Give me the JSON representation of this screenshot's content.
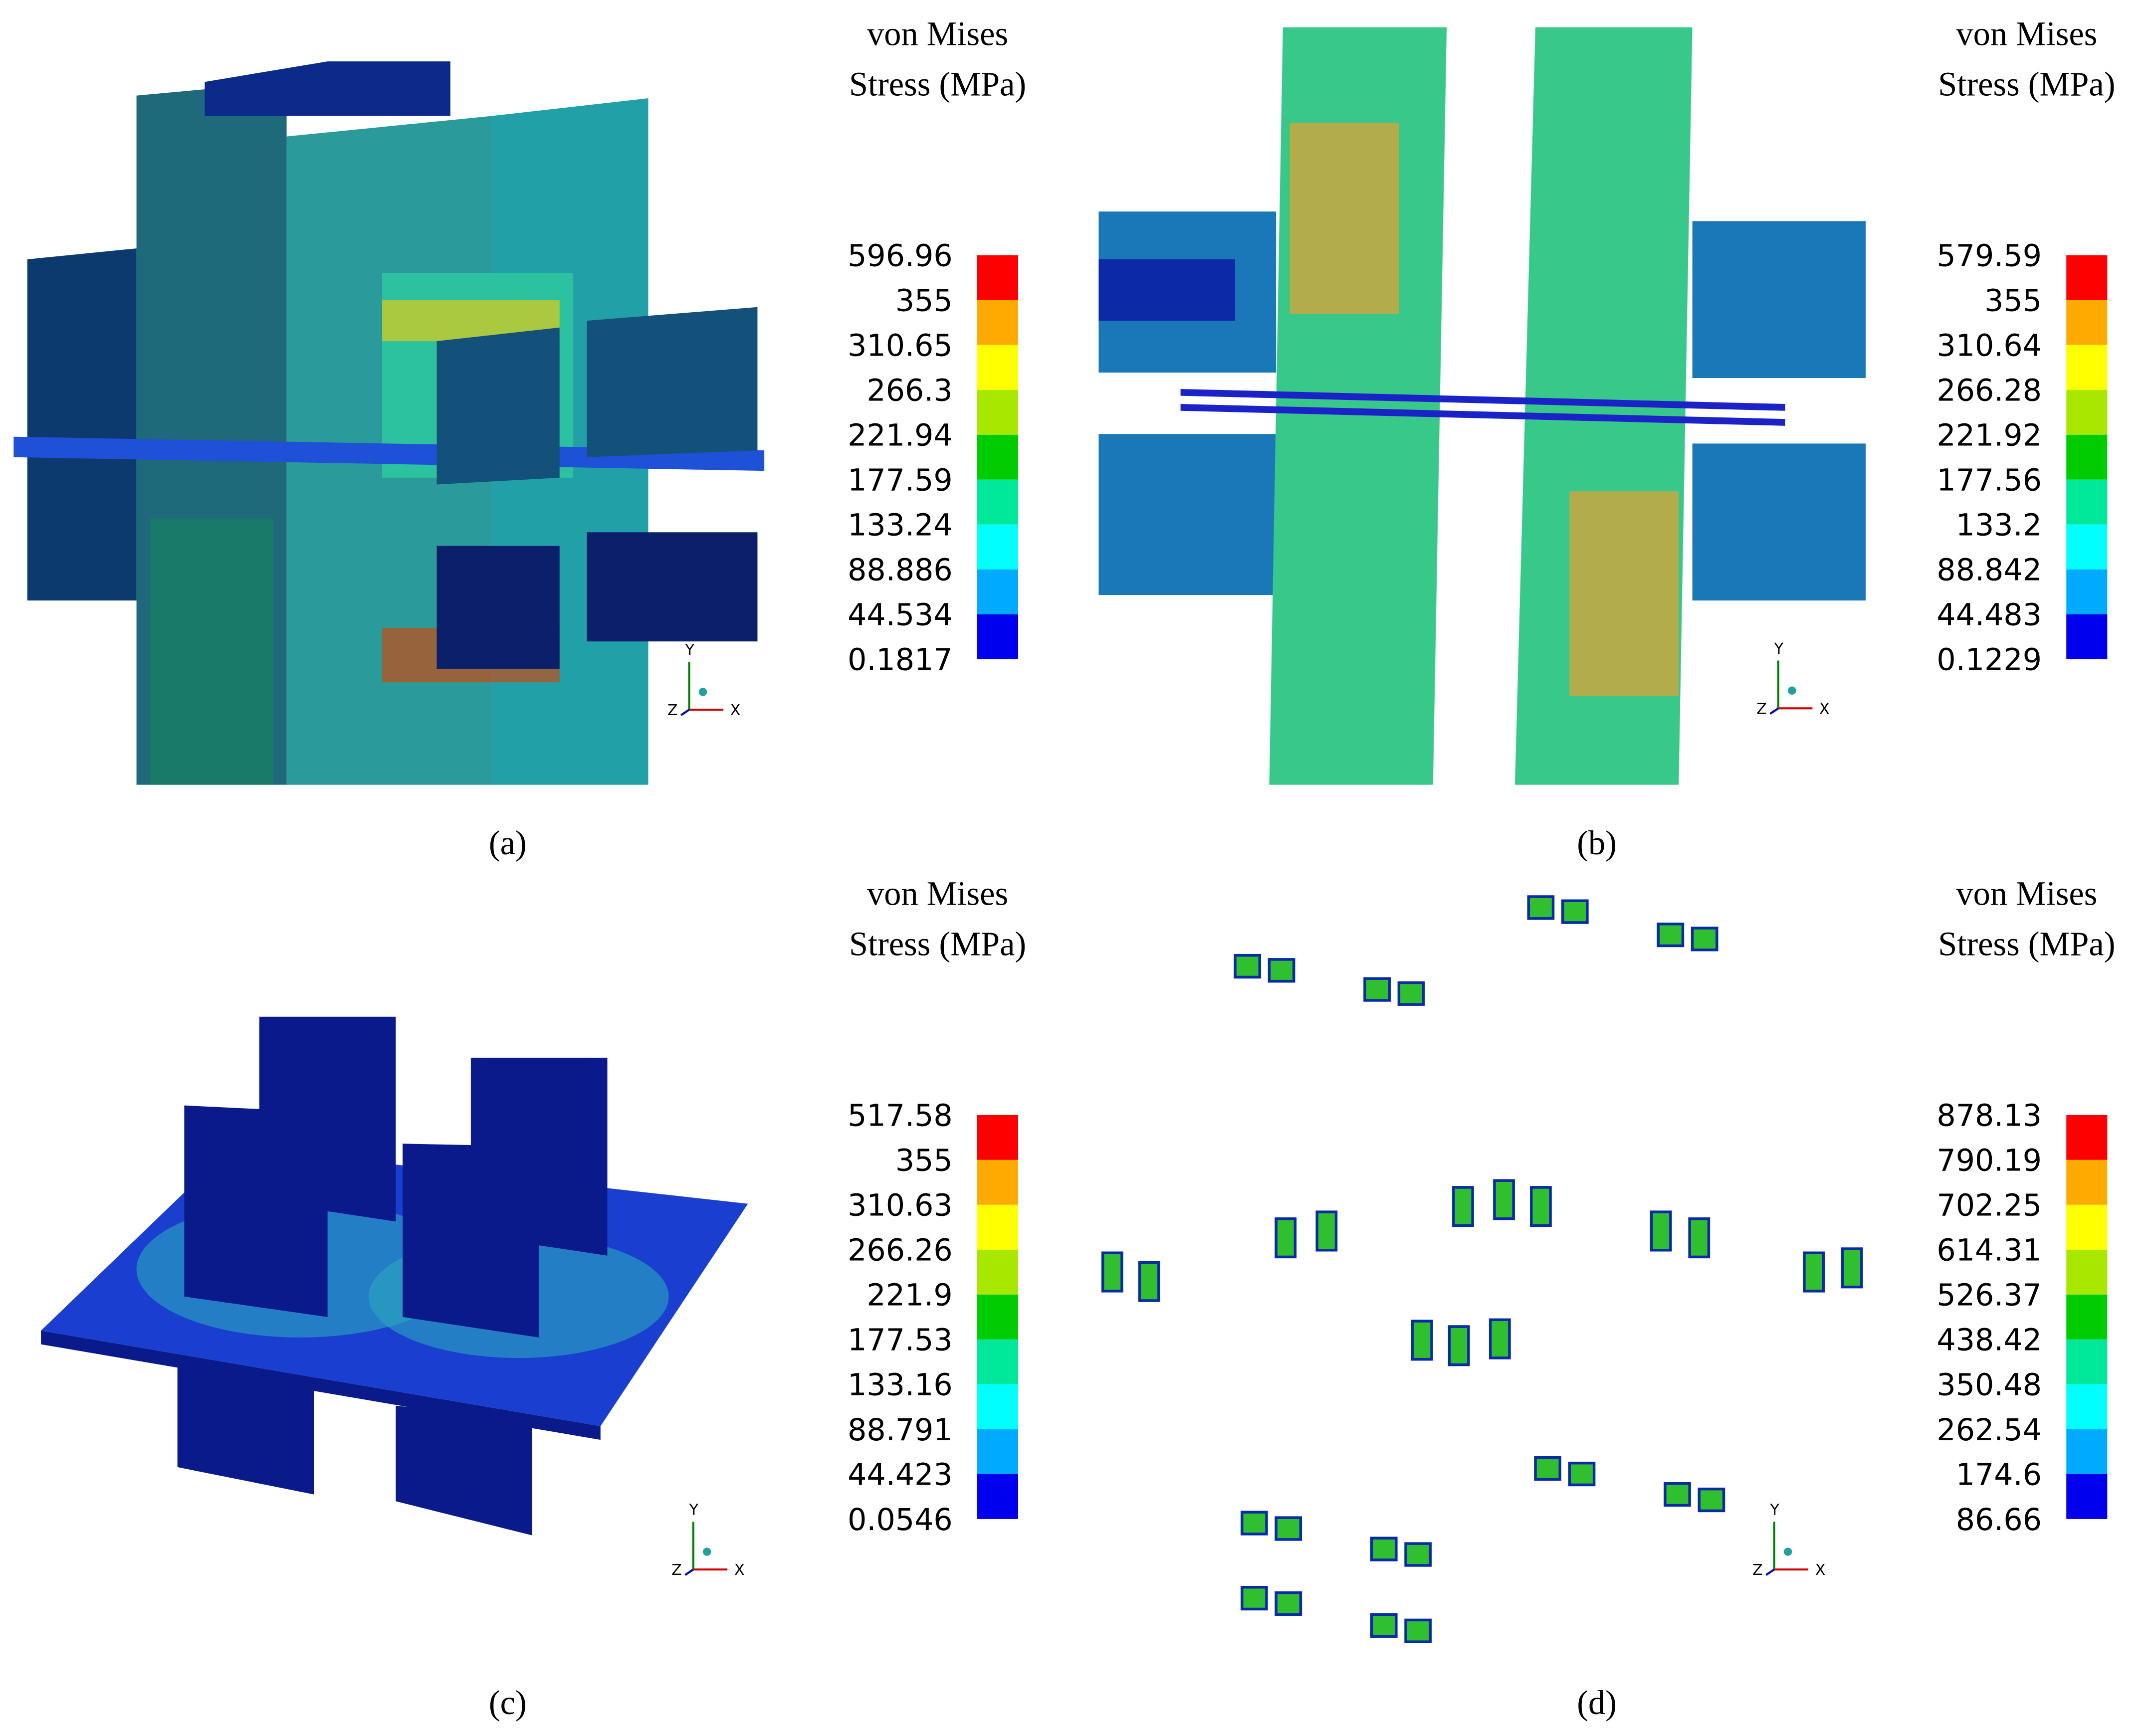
{
  "legend_colors": [
    "#ff0000",
    "#ffaa00",
    "#ffff00",
    "#a8e800",
    "#00cc00",
    "#00e89a",
    "#00ffff",
    "#00aaff",
    "#0000ee"
  ],
  "axes": [
    "X",
    "Y",
    "Z"
  ],
  "panels": [
    {
      "caption": "(a)",
      "legend_title": [
        "von Mises",
        "Stress (MPa)"
      ],
      "legend_labels": [
        596.96,
        355,
        310.65,
        266.3,
        221.94,
        177.59,
        133.24,
        88.886,
        44.534,
        0.1817
      ]
    },
    {
      "caption": "(b)",
      "legend_title": [
        "von Mises",
        "Stress (MPa)"
      ],
      "legend_labels": [
        579.59,
        355,
        310.64,
        266.28,
        221.92,
        177.56,
        133.2,
        88.842,
        44.483,
        0.1229
      ]
    },
    {
      "caption": "(c)",
      "legend_title": [
        "von Mises",
        "Stress (MPa)"
      ],
      "legend_labels": [
        517.58,
        355,
        310.63,
        266.26,
        221.9,
        177.53,
        133.16,
        88.791,
        44.423,
        0.0546
      ]
    },
    {
      "caption": "(d)",
      "legend_title": [
        "von Mises",
        "Stress (MPa)"
      ],
      "legend_labels": [
        878.13,
        790.19,
        702.25,
        614.31,
        526.37,
        438.42,
        350.48,
        262.54,
        174.6,
        86.66
      ]
    }
  ]
}
